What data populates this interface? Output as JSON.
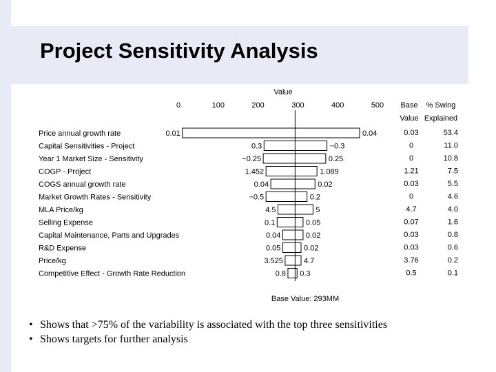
{
  "slide": {
    "title": "Project Sensitivity Analysis",
    "bullets": [
      "Shows that >75% of the variability is associated with the top three sensitivities",
      "Shows targets for further analysis"
    ]
  },
  "chart_data": {
    "type": "tornado",
    "axis_title": "Value",
    "xlim": [
      0,
      500
    ],
    "x_ticks": [
      "0",
      "100",
      "200",
      "300",
      "400",
      "500"
    ],
    "base_value": 293,
    "footer": "Base Value: 293MM",
    "table_headers": {
      "base_line1": "Base",
      "base_line2": "Value",
      "swing_line1": "% Swing",
      "swing_line2": "Explained"
    },
    "rows": [
      {
        "label": "Price annual growth rate",
        "low": 10,
        "high": 455,
        "low_label": "0.01",
        "high_label": "0.04",
        "base": "0.03",
        "swing": "53.4"
      },
      {
        "label": "Capital Sensitivities - Project",
        "low": 215,
        "high": 373,
        "low_label": "0.3",
        "high_label": "−0.3",
        "base": "0",
        "swing": "11.0"
      },
      {
        "label": "Year 1 Market Size - Sensitivity",
        "low": 213,
        "high": 370,
        "low_label": "−0.25",
        "high_label": "0.25",
        "base": "0",
        "swing": "10.8"
      },
      {
        "label": "COGP - Project",
        "low": 220,
        "high": 348,
        "low_label": "1.452",
        "high_label": "1.089",
        "base": "1.21",
        "swing": "7.5"
      },
      {
        "label": "COGS annual growth rate",
        "low": 232,
        "high": 343,
        "low_label": "0.04",
        "high_label": "0.02",
        "base": "0.03",
        "swing": "5.5"
      },
      {
        "label": "Market Growth Rates - Sensitivity",
        "low": 220,
        "high": 323,
        "low_label": "−0.5",
        "high_label": "0.2",
        "base": "0",
        "swing": "4.6"
      },
      {
        "label": "MLA Price/kg",
        "low": 250,
        "high": 338,
        "low_label": "4.5",
        "high_label": "5",
        "base": "4.7",
        "swing": "4.0"
      },
      {
        "label": "Selling Expense",
        "low": 248,
        "high": 313,
        "low_label": "0.1",
        "high_label": "0.05",
        "base": "0.07",
        "swing": "1.6"
      },
      {
        "label": "Capital Maintenance, Parts and Upgrades",
        "low": 262,
        "high": 313,
        "low_label": "0.04",
        "high_label": "0.02",
        "base": "0.03",
        "swing": "0.8"
      },
      {
        "label": "R&D Expense",
        "low": 262,
        "high": 308,
        "low_label": "0.05",
        "high_label": "0.02",
        "base": "0.03",
        "swing": "0.6"
      },
      {
        "label": "Price/kg",
        "low": 268,
        "high": 308,
        "low_label": "3.525",
        "high_label": "4.7",
        "base": "3.76",
        "swing": "0.2"
      },
      {
        "label": "Competitive Effect - Growth Rate Reduction",
        "low": 275,
        "high": 298,
        "low_label": "0.8",
        "high_label": "0.3",
        "base": "0.5",
        "swing": "0.1"
      }
    ]
  }
}
